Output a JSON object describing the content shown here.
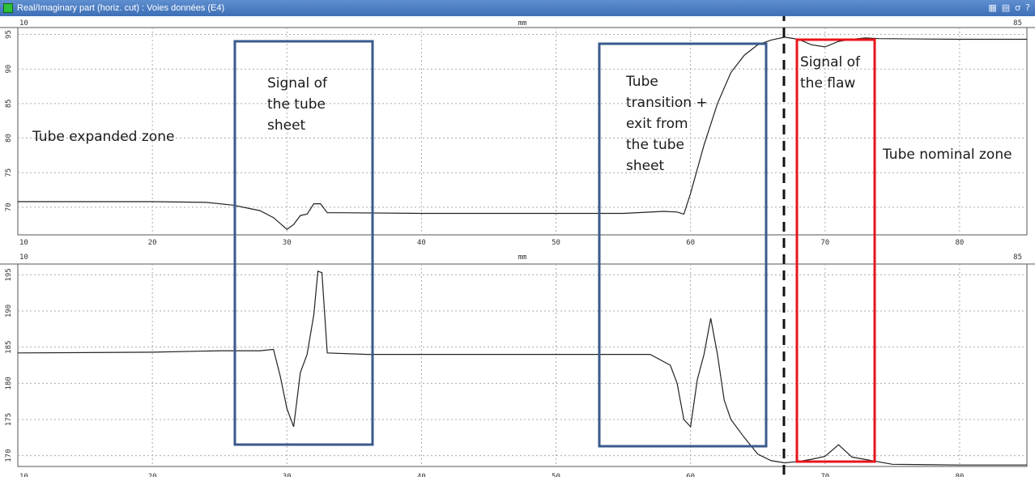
{
  "window": {
    "title": "Real/Imaginary part (horiz. cut)  : Voies données (E4)",
    "icons": [
      "grid-icon",
      "split-icon",
      "sigma-icon",
      "info-icon"
    ],
    "icon_glyphs": [
      "▦",
      "▤",
      "σ",
      "?"
    ]
  },
  "chart_data": [
    {
      "type": "line",
      "name": "top-panel",
      "x_unit_label": "mm",
      "xlim": [
        10,
        85
      ],
      "x_start_label": "10",
      "x_end_label": "85",
      "x_ticks": [
        10,
        20,
        30,
        40,
        50,
        60,
        70,
        80
      ],
      "y_tick_labels": [
        "95",
        "90",
        "85",
        "80",
        "75",
        "70"
      ],
      "ylim": [
        66,
        96
      ],
      "grid": true,
      "series": [
        {
          "color": "#222222",
          "x": [
            10,
            20,
            24,
            26,
            28,
            29,
            30,
            30.5,
            31,
            31.5,
            32,
            32.5,
            33,
            34,
            40,
            50,
            55,
            58,
            59,
            59.5,
            60,
            61,
            62,
            63,
            64,
            65,
            66,
            67,
            68,
            69,
            70,
            71,
            72,
            73,
            74,
            80,
            85
          ],
          "y": [
            70.8,
            70.8,
            70.7,
            70.3,
            69.5,
            68.5,
            66.8,
            67.5,
            68.8,
            69,
            70.5,
            70.5,
            69.2,
            69.2,
            69.1,
            69.1,
            69.1,
            69.4,
            69.3,
            69,
            72,
            79,
            85,
            89.5,
            92,
            93.5,
            94.2,
            94.6,
            94.3,
            93.5,
            93.2,
            94,
            94.3,
            94.5,
            94.4,
            94.3,
            94.3
          ]
        }
      ]
    },
    {
      "type": "line",
      "name": "bottom-panel",
      "x_unit_label": "mm",
      "xlim": [
        10,
        85
      ],
      "x_start_label": "10",
      "x_end_label": "85",
      "x_ticks": [
        10,
        20,
        30,
        40,
        50,
        60,
        70,
        80
      ],
      "y_tick_labels": [
        "195",
        "190",
        "185",
        "180",
        "175",
        "170"
      ],
      "ylim": [
        168.5,
        196.5
      ],
      "grid": true,
      "series": [
        {
          "color": "#222222",
          "x": [
            10,
            20,
            25,
            28,
            29,
            29.5,
            30,
            30.5,
            31,
            31.5,
            32,
            32.3,
            32.6,
            33,
            36,
            40,
            50,
            57,
            58.5,
            59,
            59.5,
            60,
            60.5,
            61,
            61.5,
            62,
            62.5,
            63,
            64,
            65,
            66,
            67,
            68,
            69,
            70,
            71,
            72,
            75,
            80,
            85
          ],
          "y": [
            184.2,
            184.3,
            184.5,
            184.5,
            184.7,
            181,
            176.5,
            174,
            181.5,
            184,
            189.5,
            195.5,
            195.3,
            184.2,
            184,
            184,
            184,
            184,
            182.5,
            180,
            175,
            174,
            180.5,
            184,
            189,
            184,
            177.7,
            175,
            172.5,
            170.2,
            169.3,
            169,
            169.2,
            169.5,
            169.9,
            171.5,
            169.8,
            168.8,
            168.7,
            168.7
          ]
        }
      ]
    }
  ],
  "annotations": {
    "tube_expanded": [
      "Tube expanded  zone"
    ],
    "tube_sheet": [
      "Signal of",
      "the tube",
      "sheet"
    ],
    "transition": [
      "Tube",
      "transition +",
      "exit from",
      "the tube",
      "sheet"
    ],
    "flaw": [
      "Signal of",
      "the flaw"
    ],
    "nominal": [
      "Tube nominal  zone"
    ]
  },
  "colors": {
    "box_blue": "#3a5a8c",
    "box_red": "#e8141b",
    "titlebar": "#3d6fb6",
    "grid": "#aaaaaa"
  }
}
